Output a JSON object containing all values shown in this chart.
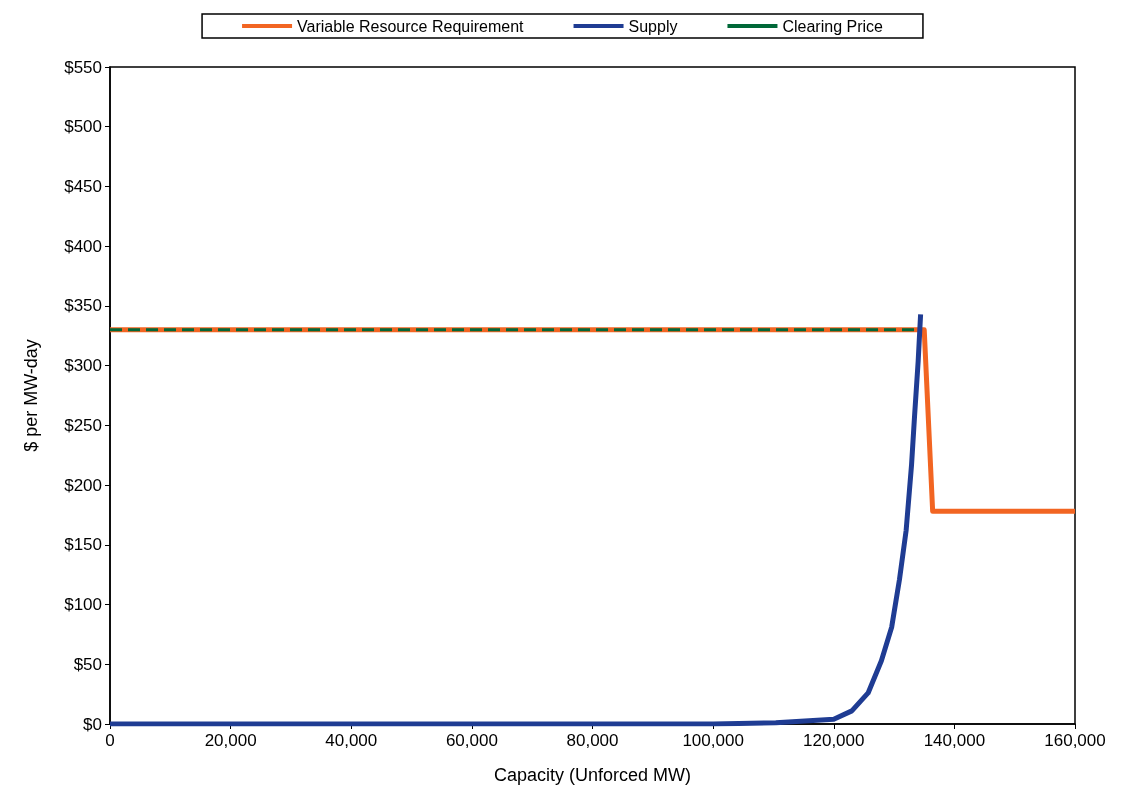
{
  "chart_data": {
    "type": "line",
    "xlabel": "Capacity (Unforced MW)",
    "ylabel": "$ per MW-day",
    "xlim": [
      0,
      160000
    ],
    "xticks": [
      0,
      {
        "value": 20000,
        "label": "20,000"
      },
      {
        "value": 40000,
        "label": "40,000"
      },
      {
        "value": 60000,
        "label": "60,000"
      },
      {
        "value": 80000,
        "label": "80,000"
      },
      {
        "value": 100000,
        "label": "100,000"
      },
      {
        "value": 120000,
        "label": "120,000"
      },
      {
        "value": 140000,
        "label": "140,000"
      },
      {
        "value": 160000,
        "label": "160,000"
      }
    ],
    "ylim": [
      0,
      550
    ],
    "yticks": [
      {
        "value": 0,
        "label": "$0"
      },
      {
        "value": 50,
        "label": "$50"
      },
      {
        "value": 100,
        "label": "$100"
      },
      {
        "value": 150,
        "label": "$150"
      },
      {
        "value": 200,
        "label": "$200"
      },
      {
        "value": 250,
        "label": "$250"
      },
      {
        "value": 300,
        "label": "$300"
      },
      {
        "value": 350,
        "label": "$350"
      },
      {
        "value": 400,
        "label": "$400"
      },
      {
        "value": 450,
        "label": "$450"
      },
      {
        "value": 500,
        "label": "$500"
      },
      {
        "value": 550,
        "label": "$550"
      }
    ],
    "grid": false,
    "legend": "top",
    "marker": "none",
    "series": [
      {
        "name": "Variable Resource Requirement",
        "color": "#f26522",
        "line_style": "solid",
        "x": [
          0,
          135000,
          136400,
          160000
        ],
        "values": [
          330,
          330,
          178,
          178
        ]
      },
      {
        "name": "Supply",
        "color": "#1f3c93",
        "line_style": "solid",
        "x": [
          0,
          80000,
          100000,
          110400,
          120000,
          123000,
          125700,
          127900,
          129600,
          130900,
          132000,
          132900,
          133400,
          134000,
          134400
        ],
        "values": [
          0,
          0,
          0,
          1,
          4,
          11,
          26,
          53,
          81,
          121,
          162,
          217,
          258,
          304,
          343
        ]
      },
      {
        "name": "Clearing Price",
        "color": "#006838",
        "line_style": "dashed",
        "x": [
          0,
          134000
        ],
        "values": [
          330,
          330
        ]
      }
    ]
  }
}
